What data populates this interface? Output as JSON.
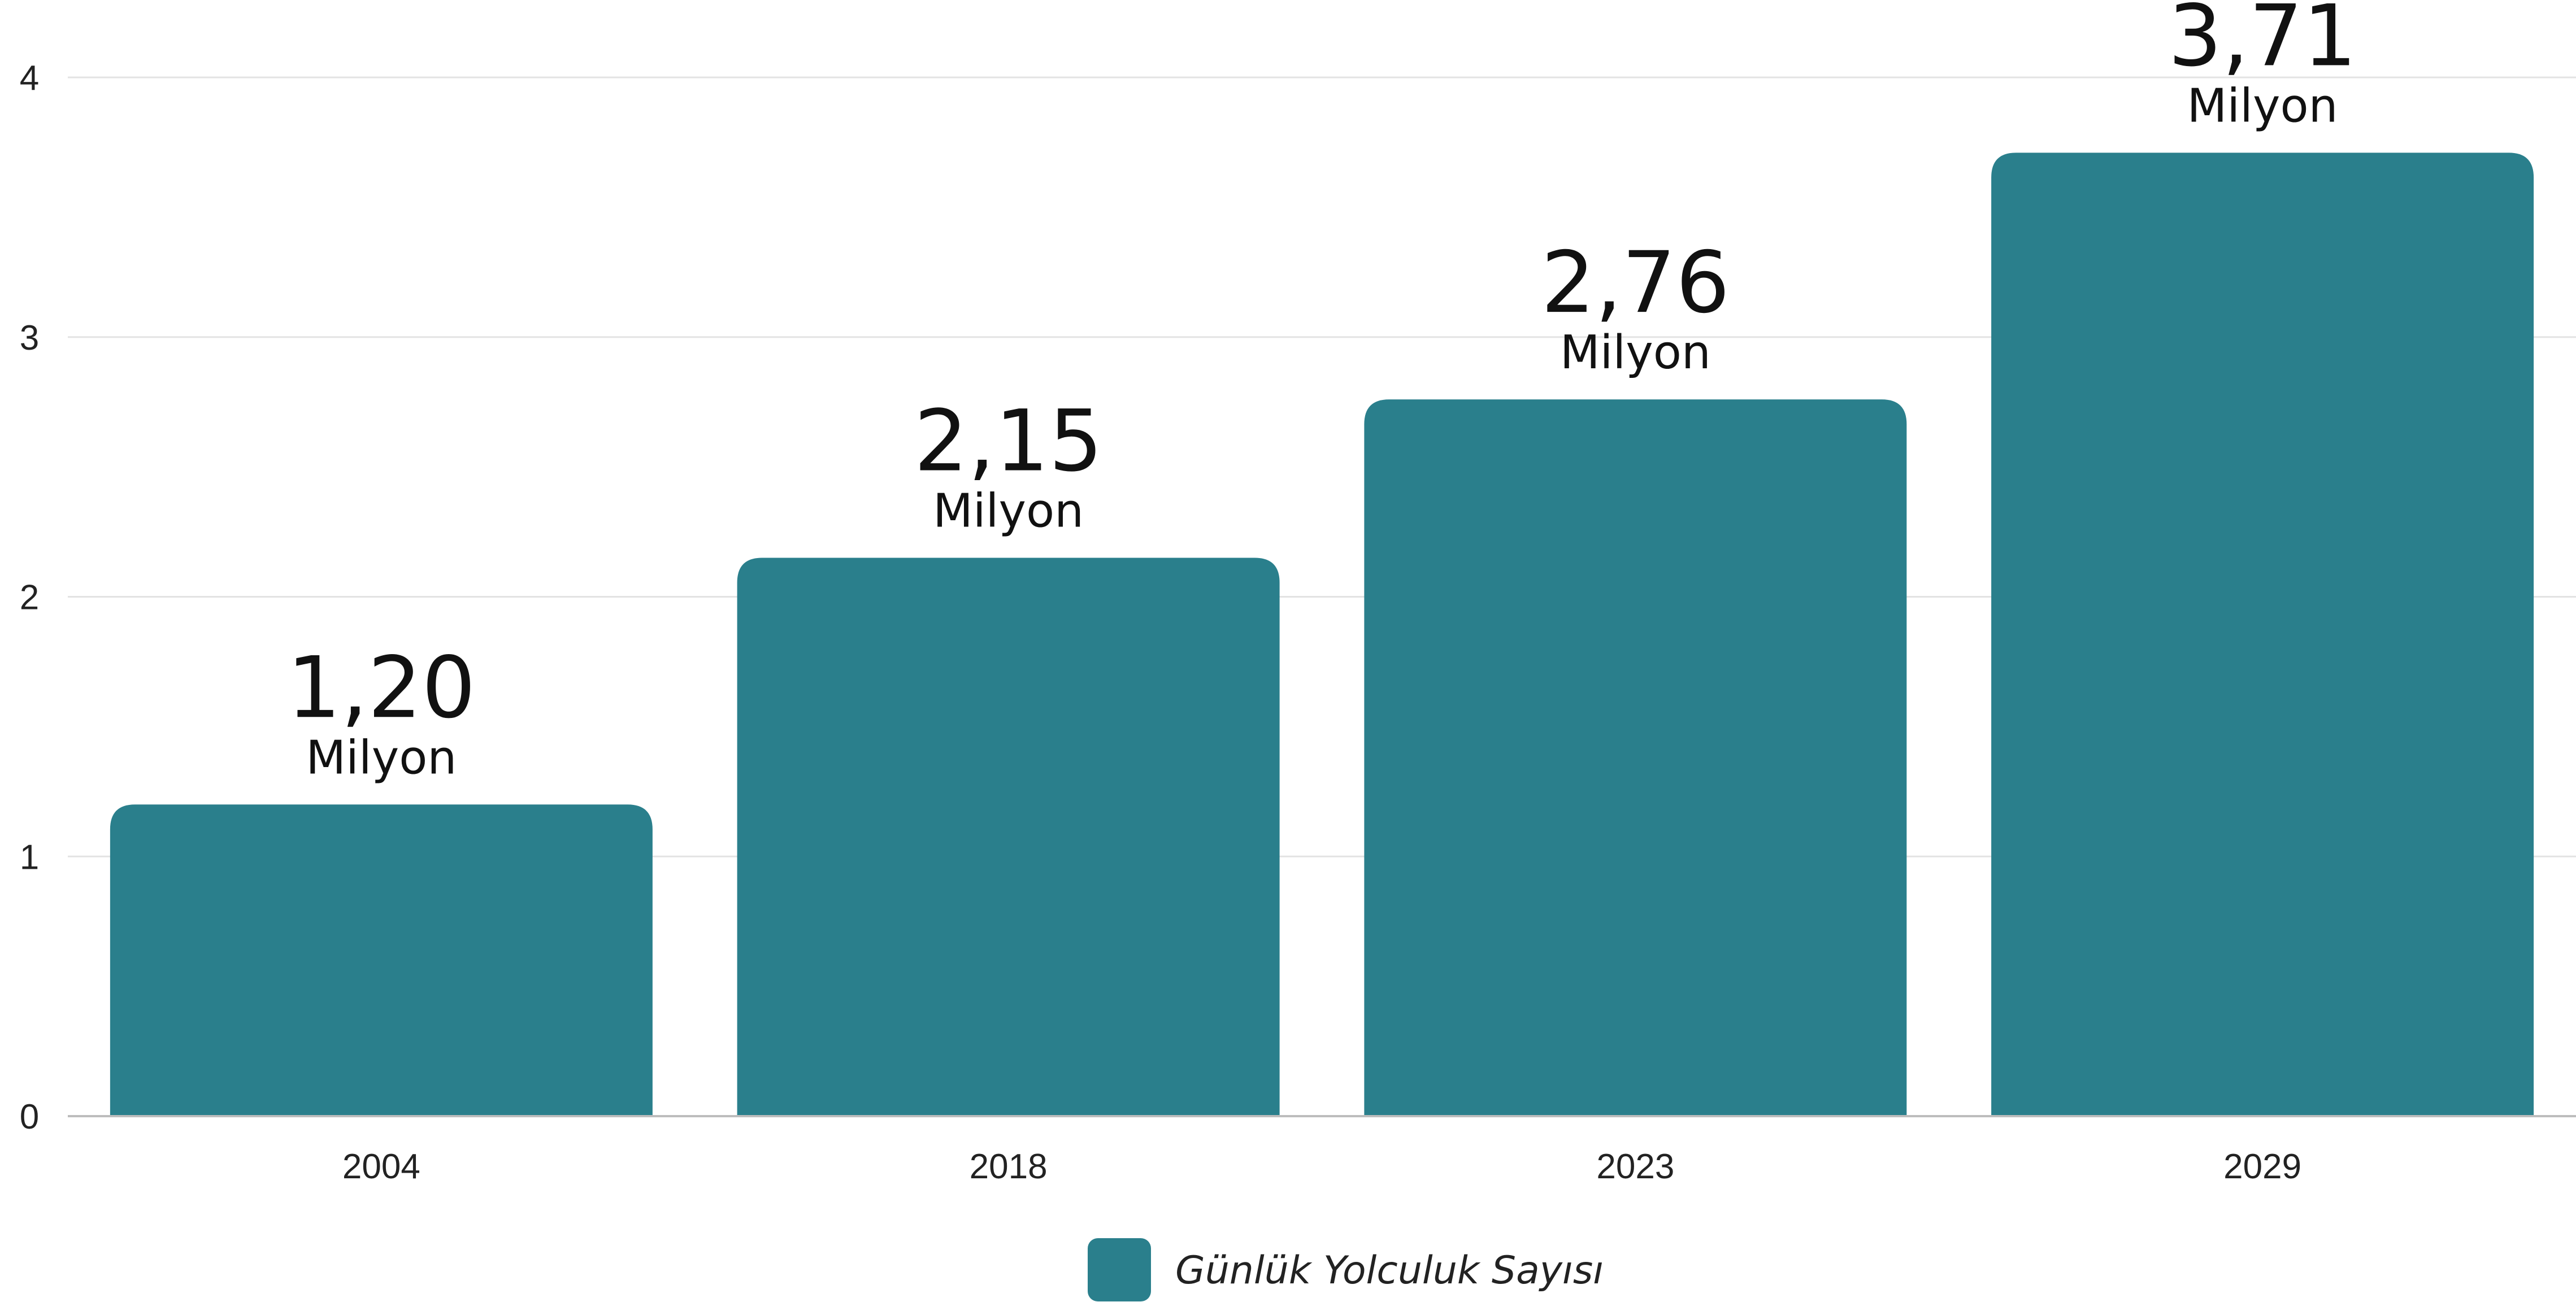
{
  "chart_data": {
    "type": "bar",
    "categories": [
      "2004",
      "2018",
      "2023",
      "2029"
    ],
    "series": [
      {
        "name": "Günlük Yolculuk Sayısı",
        "values": [
          1.2,
          2.15,
          2.76,
          3.71
        ]
      }
    ],
    "value_labels": [
      "1,20",
      "2,15",
      "2,76",
      "3,71"
    ],
    "value_unit": "Milyon",
    "y_ticks": [
      "0",
      "1",
      "2",
      "3",
      "4"
    ],
    "ylim": [
      0,
      4
    ],
    "grid": true,
    "legend_position": "bottom-center",
    "bar_color": "#2a7f8c",
    "grid_color": "#e3e3e3",
    "axis_color": "#bdbdbd"
  }
}
